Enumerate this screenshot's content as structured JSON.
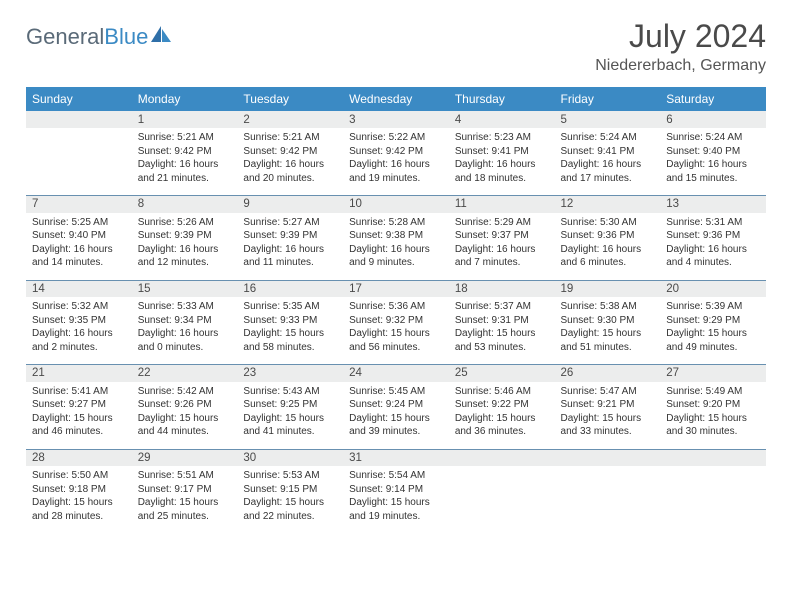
{
  "brand": {
    "part1": "General",
    "part2": "Blue"
  },
  "title": "July 2024",
  "location": "Niedererbach, Germany",
  "colors": {
    "header_bg": "#3b8ac4",
    "header_text": "#ffffff",
    "daynum_bg": "#eceded",
    "text": "#333333",
    "rule": "#6890b0",
    "background": "#ffffff"
  },
  "fonts": {
    "title_pt": 32,
    "location_pt": 16,
    "dayhead_pt": 12,
    "body_pt": 10
  },
  "day_headers": [
    "Sunday",
    "Monday",
    "Tuesday",
    "Wednesday",
    "Thursday",
    "Friday",
    "Saturday"
  ],
  "weeks": [
    [
      {
        "n": "",
        "sr": "",
        "ss": "",
        "dl": ""
      },
      {
        "n": "1",
        "sr": "Sunrise: 5:21 AM",
        "ss": "Sunset: 9:42 PM",
        "dl": "Daylight: 16 hours and 21 minutes."
      },
      {
        "n": "2",
        "sr": "Sunrise: 5:21 AM",
        "ss": "Sunset: 9:42 PM",
        "dl": "Daylight: 16 hours and 20 minutes."
      },
      {
        "n": "3",
        "sr": "Sunrise: 5:22 AM",
        "ss": "Sunset: 9:42 PM",
        "dl": "Daylight: 16 hours and 19 minutes."
      },
      {
        "n": "4",
        "sr": "Sunrise: 5:23 AM",
        "ss": "Sunset: 9:41 PM",
        "dl": "Daylight: 16 hours and 18 minutes."
      },
      {
        "n": "5",
        "sr": "Sunrise: 5:24 AM",
        "ss": "Sunset: 9:41 PM",
        "dl": "Daylight: 16 hours and 17 minutes."
      },
      {
        "n": "6",
        "sr": "Sunrise: 5:24 AM",
        "ss": "Sunset: 9:40 PM",
        "dl": "Daylight: 16 hours and 15 minutes."
      }
    ],
    [
      {
        "n": "7",
        "sr": "Sunrise: 5:25 AM",
        "ss": "Sunset: 9:40 PM",
        "dl": "Daylight: 16 hours and 14 minutes."
      },
      {
        "n": "8",
        "sr": "Sunrise: 5:26 AM",
        "ss": "Sunset: 9:39 PM",
        "dl": "Daylight: 16 hours and 12 minutes."
      },
      {
        "n": "9",
        "sr": "Sunrise: 5:27 AM",
        "ss": "Sunset: 9:39 PM",
        "dl": "Daylight: 16 hours and 11 minutes."
      },
      {
        "n": "10",
        "sr": "Sunrise: 5:28 AM",
        "ss": "Sunset: 9:38 PM",
        "dl": "Daylight: 16 hours and 9 minutes."
      },
      {
        "n": "11",
        "sr": "Sunrise: 5:29 AM",
        "ss": "Sunset: 9:37 PM",
        "dl": "Daylight: 16 hours and 7 minutes."
      },
      {
        "n": "12",
        "sr": "Sunrise: 5:30 AM",
        "ss": "Sunset: 9:36 PM",
        "dl": "Daylight: 16 hours and 6 minutes."
      },
      {
        "n": "13",
        "sr": "Sunrise: 5:31 AM",
        "ss": "Sunset: 9:36 PM",
        "dl": "Daylight: 16 hours and 4 minutes."
      }
    ],
    [
      {
        "n": "14",
        "sr": "Sunrise: 5:32 AM",
        "ss": "Sunset: 9:35 PM",
        "dl": "Daylight: 16 hours and 2 minutes."
      },
      {
        "n": "15",
        "sr": "Sunrise: 5:33 AM",
        "ss": "Sunset: 9:34 PM",
        "dl": "Daylight: 16 hours and 0 minutes."
      },
      {
        "n": "16",
        "sr": "Sunrise: 5:35 AM",
        "ss": "Sunset: 9:33 PM",
        "dl": "Daylight: 15 hours and 58 minutes."
      },
      {
        "n": "17",
        "sr": "Sunrise: 5:36 AM",
        "ss": "Sunset: 9:32 PM",
        "dl": "Daylight: 15 hours and 56 minutes."
      },
      {
        "n": "18",
        "sr": "Sunrise: 5:37 AM",
        "ss": "Sunset: 9:31 PM",
        "dl": "Daylight: 15 hours and 53 minutes."
      },
      {
        "n": "19",
        "sr": "Sunrise: 5:38 AM",
        "ss": "Sunset: 9:30 PM",
        "dl": "Daylight: 15 hours and 51 minutes."
      },
      {
        "n": "20",
        "sr": "Sunrise: 5:39 AM",
        "ss": "Sunset: 9:29 PM",
        "dl": "Daylight: 15 hours and 49 minutes."
      }
    ],
    [
      {
        "n": "21",
        "sr": "Sunrise: 5:41 AM",
        "ss": "Sunset: 9:27 PM",
        "dl": "Daylight: 15 hours and 46 minutes."
      },
      {
        "n": "22",
        "sr": "Sunrise: 5:42 AM",
        "ss": "Sunset: 9:26 PM",
        "dl": "Daylight: 15 hours and 44 minutes."
      },
      {
        "n": "23",
        "sr": "Sunrise: 5:43 AM",
        "ss": "Sunset: 9:25 PM",
        "dl": "Daylight: 15 hours and 41 minutes."
      },
      {
        "n": "24",
        "sr": "Sunrise: 5:45 AM",
        "ss": "Sunset: 9:24 PM",
        "dl": "Daylight: 15 hours and 39 minutes."
      },
      {
        "n": "25",
        "sr": "Sunrise: 5:46 AM",
        "ss": "Sunset: 9:22 PM",
        "dl": "Daylight: 15 hours and 36 minutes."
      },
      {
        "n": "26",
        "sr": "Sunrise: 5:47 AM",
        "ss": "Sunset: 9:21 PM",
        "dl": "Daylight: 15 hours and 33 minutes."
      },
      {
        "n": "27",
        "sr": "Sunrise: 5:49 AM",
        "ss": "Sunset: 9:20 PM",
        "dl": "Daylight: 15 hours and 30 minutes."
      }
    ],
    [
      {
        "n": "28",
        "sr": "Sunrise: 5:50 AM",
        "ss": "Sunset: 9:18 PM",
        "dl": "Daylight: 15 hours and 28 minutes."
      },
      {
        "n": "29",
        "sr": "Sunrise: 5:51 AM",
        "ss": "Sunset: 9:17 PM",
        "dl": "Daylight: 15 hours and 25 minutes."
      },
      {
        "n": "30",
        "sr": "Sunrise: 5:53 AM",
        "ss": "Sunset: 9:15 PM",
        "dl": "Daylight: 15 hours and 22 minutes."
      },
      {
        "n": "31",
        "sr": "Sunrise: 5:54 AM",
        "ss": "Sunset: 9:14 PM",
        "dl": "Daylight: 15 hours and 19 minutes."
      },
      {
        "n": "",
        "sr": "",
        "ss": "",
        "dl": ""
      },
      {
        "n": "",
        "sr": "",
        "ss": "",
        "dl": ""
      },
      {
        "n": "",
        "sr": "",
        "ss": "",
        "dl": ""
      }
    ]
  ]
}
